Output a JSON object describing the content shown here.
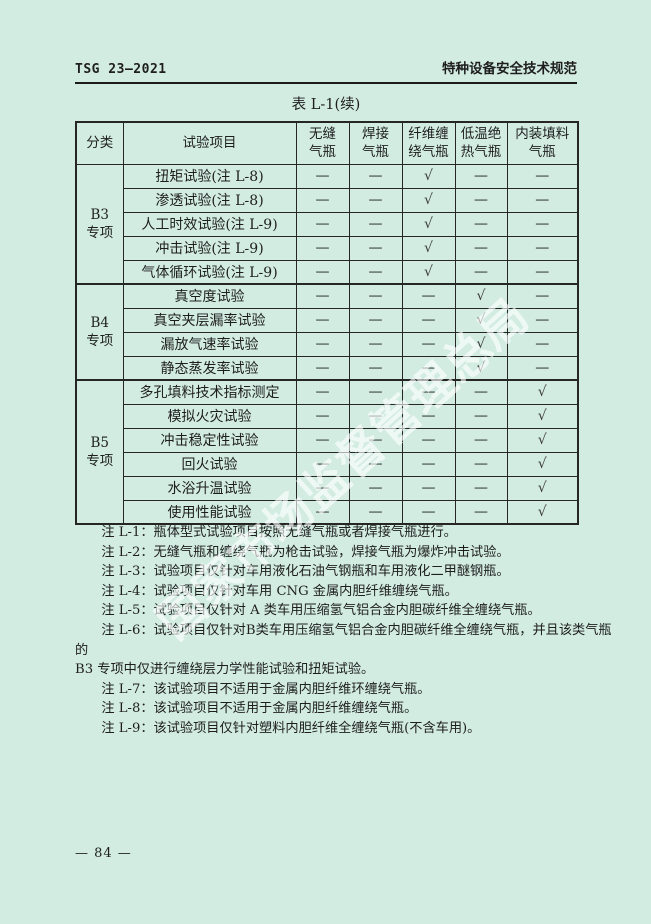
{
  "page": {
    "background": "#d2ece2",
    "header": {
      "left": "TSG 23—2021",
      "right": "特种设备安全技术规范"
    },
    "footer": {
      "page_number": "— 84 —"
    },
    "watermark": {
      "text": "国家市场监督管理总局",
      "color": "rgba(255,255,255,0.62)"
    }
  },
  "table": {
    "title": "表 L-1(续)",
    "corner_headers": [
      "分类",
      "试验项目"
    ],
    "bottle_type_headers": [
      [
        "无缝",
        "气瓶"
      ],
      [
        "焊接",
        "气瓶"
      ],
      [
        "纤维缠",
        "绕气瓶"
      ],
      [
        "低温绝",
        "热气瓶"
      ],
      [
        "内装填料",
        "气瓶"
      ]
    ],
    "symbols": {
      "dash": "—",
      "check": "√"
    },
    "groups": [
      {
        "label": "B3",
        "sublabel": "专项",
        "rows": [
          {
            "name": "扭矩试验(注 L-8)",
            "cells": [
              "—",
              "—",
              "√",
              "—",
              "—"
            ]
          },
          {
            "name": "渗透试验(注 L-8)",
            "cells": [
              "—",
              "—",
              "√",
              "—",
              "—"
            ]
          },
          {
            "name": "人工时效试验(注 L-9)",
            "cells": [
              "—",
              "—",
              "√",
              "—",
              "—"
            ]
          },
          {
            "name": "冲击试验(注 L-9)",
            "cells": [
              "—",
              "—",
              "√",
              "—",
              "—"
            ]
          },
          {
            "name": "气体循环试验(注 L-9)",
            "cells": [
              "—",
              "—",
              "√",
              "—",
              "—"
            ]
          }
        ]
      },
      {
        "label": "B4",
        "sublabel": "专项",
        "rows": [
          {
            "name": "真空度试验",
            "cells": [
              "—",
              "—",
              "—",
              "√",
              "—"
            ]
          },
          {
            "name": "真空夹层漏率试验",
            "cells": [
              "—",
              "—",
              "—",
              "√",
              "—"
            ]
          },
          {
            "name": "漏放气速率试验",
            "cells": [
              "—",
              "—",
              "—",
              "√",
              "—"
            ]
          },
          {
            "name": "静态蒸发率试验",
            "cells": [
              "—",
              "—",
              "—",
              "√",
              "—"
            ]
          }
        ]
      },
      {
        "label": "B5",
        "sublabel": "专项",
        "rows": [
          {
            "name": "多孔填料技术指标测定",
            "cells": [
              "—",
              "—",
              "—",
              "—",
              "√"
            ]
          },
          {
            "name": "模拟火灾试验",
            "cells": [
              "—",
              "—",
              "—",
              "—",
              "√"
            ]
          },
          {
            "name": "冲击稳定性试验",
            "cells": [
              "—",
              "—",
              "—",
              "—",
              "√"
            ]
          },
          {
            "name": "回火试验",
            "cells": [
              "—",
              "—",
              "—",
              "—",
              "√"
            ]
          },
          {
            "name": "水浴升温试验",
            "cells": [
              "—",
              "—",
              "—",
              "—",
              "√"
            ]
          },
          {
            "name": "使用性能试验",
            "cells": [
              "—",
              "—",
              "—",
              "—",
              "√"
            ]
          }
        ]
      }
    ]
  },
  "notes": [
    "注 L-1：瓶体型式试验项目按照无缝气瓶或者焊接气瓶进行。",
    "注 L-2：无缝气瓶和缠绕气瓶为枪击试验，焊接气瓶为爆炸冲击试验。",
    "注 L-3：试验项目仅针对车用液化石油气钢瓶和车用液化二甲醚钢瓶。",
    "注 L-4：试验项目仅针对车用 CNG 金属内胆纤维缠绕气瓶。",
    "注 L-5：试验项目仅针对 A 类车用压缩氢气铝合金内胆碳纤维全缠绕气瓶。",
    "注 L-6：试验项目仅针对B类车用压缩氢气铝合金内胆碳纤维全缠绕气瓶，并且该类气瓶的\nB3 专项中仅进行缠绕层力学性能试验和扭矩试验。",
    "注 L-7：该试验项目不适用于金属内胆纤维环缠绕气瓶。",
    "注 L-8：该试验项目不适用于金属内胆纤维缠绕气瓶。",
    "注 L-9：该试验项目仅针对塑料内胆纤维全缠绕气瓶(不含车用)。"
  ]
}
